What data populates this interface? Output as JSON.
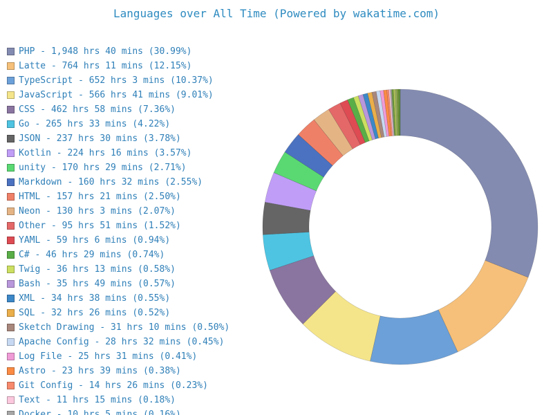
{
  "chart_data": {
    "type": "pie",
    "variant": "donut",
    "title": "Languages over All Time (Powered by wakatime.com)",
    "legend_position": "left",
    "unit": "percent",
    "series": [
      {
        "name": "PHP",
        "label": "PHP - 1,948 hrs 40 mins (30.99%)",
        "value": 30.99,
        "color": "#838bb1"
      },
      {
        "name": "Latte",
        "label": "Latte - 764 hrs 11 mins (12.15%)",
        "value": 12.15,
        "color": "#f6c07a"
      },
      {
        "name": "TypeScript",
        "label": "TypeScript - 652 hrs 3 mins (10.37%)",
        "value": 10.37,
        "color": "#6ca0d8"
      },
      {
        "name": "JavaScript",
        "label": "JavaScript - 566 hrs 41 mins (9.01%)",
        "value": 9.01,
        "color": "#f5e58a"
      },
      {
        "name": "CSS",
        "label": "CSS - 462 hrs 58 mins (7.36%)",
        "value": 7.36,
        "color": "#8a75a0"
      },
      {
        "name": "Go",
        "label": "Go - 265 hrs 33 mins (4.22%)",
        "value": 4.22,
        "color": "#4ec4e2"
      },
      {
        "name": "JSON",
        "label": "JSON - 237 hrs 30 mins (3.78%)",
        "value": 3.78,
        "color": "#656565"
      },
      {
        "name": "Kotlin",
        "label": "Kotlin - 224 hrs 16 mins (3.57%)",
        "value": 3.57,
        "color": "#c09ef7"
      },
      {
        "name": "unity",
        "label": "unity - 170 hrs 29 mins (2.71%)",
        "value": 2.71,
        "color": "#5ad973"
      },
      {
        "name": "Markdown",
        "label": "Markdown - 160 hrs 32 mins (2.55%)",
        "value": 2.55,
        "color": "#4b72c0"
      },
      {
        "name": "HTML",
        "label": "HTML - 157 hrs 21 mins (2.50%)",
        "value": 2.5,
        "color": "#ef8068"
      },
      {
        "name": "Neon",
        "label": "Neon - 130 hrs 3 mins (2.07%)",
        "value": 2.07,
        "color": "#e5b485"
      },
      {
        "name": "Other",
        "label": "Other - 95 hrs 51 mins (1.52%)",
        "value": 1.52,
        "color": "#e46868"
      },
      {
        "name": "YAML",
        "label": "YAML - 59 hrs 6 mins (0.94%)",
        "value": 0.94,
        "color": "#de4b53"
      },
      {
        "name": "C#",
        "label": "C# - 46 hrs 29 mins (0.74%)",
        "value": 0.74,
        "color": "#5aae47"
      },
      {
        "name": "Twig",
        "label": "Twig - 36 hrs 13 mins (0.58%)",
        "value": 0.58,
        "color": "#cddf60"
      },
      {
        "name": "Bash",
        "label": "Bash - 35 hrs 49 mins (0.57%)",
        "value": 0.57,
        "color": "#b997db"
      },
      {
        "name": "XML",
        "label": "XML - 34 hrs 38 mins (0.55%)",
        "value": 0.55,
        "color": "#3c88c8"
      },
      {
        "name": "SQL",
        "label": "SQL - 32 hrs 26 mins (0.52%)",
        "value": 0.52,
        "color": "#eaae4a"
      },
      {
        "name": "Sketch Drawing",
        "label": "Sketch Drawing - 31 hrs 10 mins (0.50%)",
        "value": 0.5,
        "color": "#a8877c"
      },
      {
        "name": "Apache Config",
        "label": "Apache Config - 28 hrs 32 mins (0.45%)",
        "value": 0.45,
        "color": "#c7d9f2"
      },
      {
        "name": "Log File",
        "label": "Log File - 25 hrs 31 mins (0.41%)",
        "value": 0.41,
        "color": "#ef9bd6"
      },
      {
        "name": "Astro",
        "label": "Astro - 23 hrs 39 mins (0.38%)",
        "value": 0.38,
        "color": "#fb8a43"
      },
      {
        "name": "Git Config",
        "label": "Git Config - 14 hrs 26 mins (0.23%)",
        "value": 0.23,
        "color": "#f7896c"
      },
      {
        "name": "Text",
        "label": "Text - 11 hrs 15 mins (0.18%)",
        "value": 0.18,
        "color": "#fbc8dd"
      },
      {
        "name": "Docker",
        "label": "Docker - 10 hrs 5 mins (0.16%)",
        "value": 0.16,
        "color": "#a6a6a6"
      }
    ],
    "remaining_slices_colors": [
      "#6e9b3d",
      "#b4c95a",
      "#9ab060",
      "#7fa23a",
      "#5e8e3a"
    ]
  }
}
